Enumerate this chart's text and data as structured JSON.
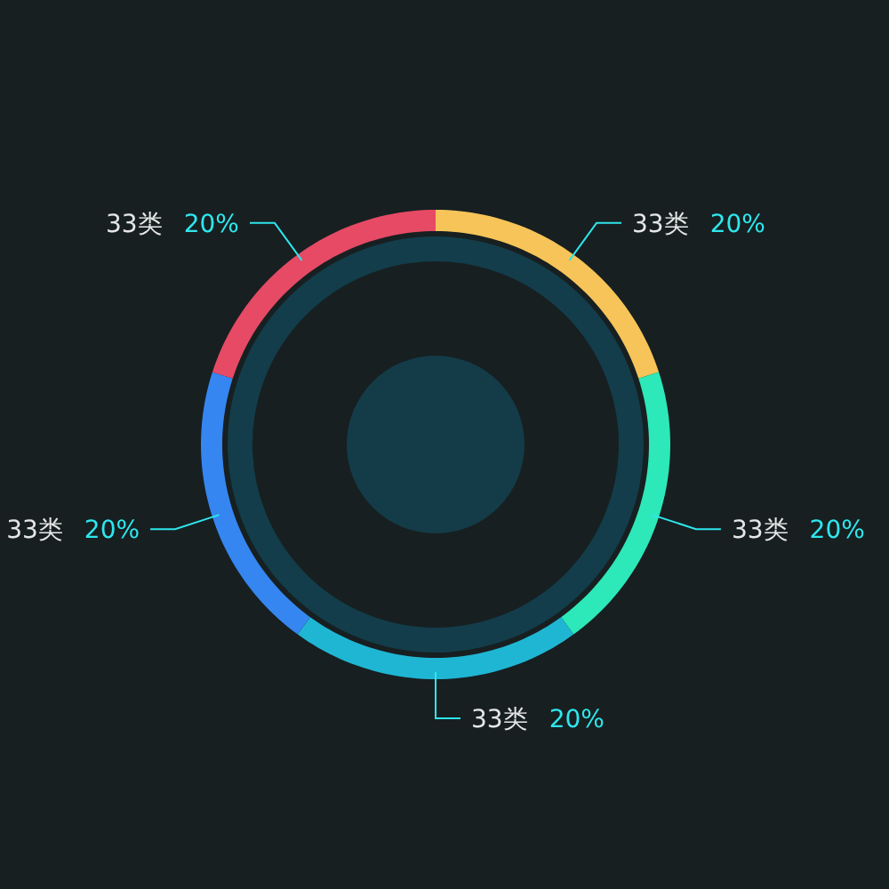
{
  "chart_data": {
    "type": "donut",
    "categories": [
      "33类",
      "33类",
      "33类",
      "33类",
      "33类"
    ],
    "values": [
      20,
      20,
      20,
      20,
      20
    ],
    "value_labels": [
      "20%",
      "20%",
      "20%",
      "20%",
      "20%"
    ],
    "colors": [
      "#f6c458",
      "#2de8b8",
      "#1fb6d4",
      "#3586f0",
      "#e64a65"
    ]
  }
}
